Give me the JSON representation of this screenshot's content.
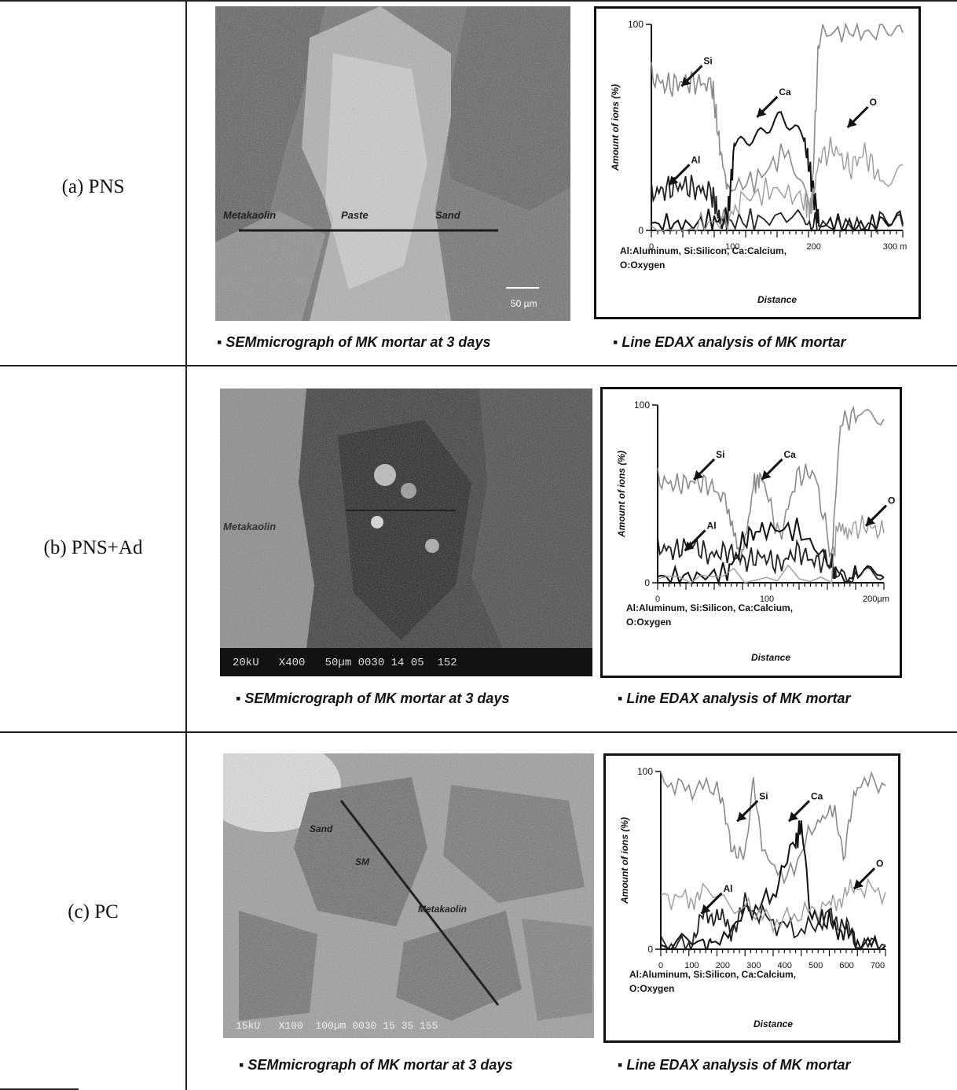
{
  "rows": [
    {
      "label": "(a) PNS",
      "sem": {
        "caption": "SEMmicrograph of MK mortar at 3 days",
        "overlay_labels": [
          "Metakaolin",
          "Paste",
          "Sand"
        ],
        "scalebar_label": "50 µm",
        "info_strip": ""
      },
      "chart": {
        "caption": "Line EDAX analysis of MK mortar",
        "ylabel": "Amount of ions (%)",
        "xlabel": "Distance",
        "legend_lines": [
          "Al:Aluminum, Si:Silicon, Ca:Calcium,",
          "O:Oxygen"
        ],
        "yticks": [
          "100",
          "0"
        ],
        "xticks": [
          "0",
          "100",
          "200",
          "300 m"
        ],
        "annotations": [
          "Si",
          "Ca",
          "Al",
          "O"
        ]
      }
    },
    {
      "label": "(b) PNS+Ad",
      "sem": {
        "caption": "SEMmicrograph of MK mortar at 3 days",
        "overlay_labels": [
          "Metakaolin"
        ],
        "scalebar_label": "",
        "info_strip": "20kU   X400   50µm 0030 14 05  152"
      },
      "chart": {
        "caption": "Line EDAX analysis of MK mortar",
        "ylabel": "Amount of ions (%)",
        "xlabel": "Distance",
        "legend_lines": [
          "Al:Aluminum, Si:Silicon, Ca:Calcium,",
          "O:Oxygen"
        ],
        "yticks": [
          "100",
          "0"
        ],
        "xticks": [
          "0",
          "100",
          "200µm"
        ],
        "annotations": [
          "Si",
          "Ca",
          "Al",
          "O"
        ]
      }
    },
    {
      "label": "(c) PC",
      "sem": {
        "caption": "SEMmicrograph of MK mortar at 3 days",
        "overlay_labels": [
          "Sand",
          "SM",
          "Metakaolin"
        ],
        "scalebar_label": "",
        "info_strip": "15kU   X100  100µm 0030 15 35 155"
      },
      "chart": {
        "caption": "Line EDAX analysis of MK mortar",
        "ylabel": "Amount of ions (%)",
        "xlabel": "Distance",
        "legend_lines": [
          "Al:Aluminum, Si:Silicon, Ca:Calcium,",
          "O:Oxygen"
        ],
        "yticks": [
          "100",
          "0"
        ],
        "xticks": [
          "0",
          "100",
          "200",
          "300",
          "400",
          "500",
          "600",
          "700"
        ],
        "annotations": [
          "Si",
          "Ca",
          "Al",
          "O"
        ]
      }
    }
  ],
  "chart_data": [
    {
      "type": "line",
      "ylabel": "Amount of ions (%)",
      "xlabel": "Distance",
      "ylim": [
        0,
        100
      ],
      "xlim": [
        0,
        330
      ],
      "series": [
        {
          "name": "Si",
          "x": [
            0,
            20,
            40,
            60,
            80,
            90,
            100,
            140,
            180,
            210,
            220,
            260,
            300,
            330
          ],
          "values": [
            75,
            70,
            72,
            72,
            70,
            40,
            20,
            25,
            40,
            10,
            95,
            97,
            95,
            96
          ]
        },
        {
          "name": "Ca",
          "x": [
            0,
            40,
            80,
            100,
            110,
            140,
            170,
            200,
            210,
            220,
            260,
            300,
            330
          ],
          "values": [
            3,
            2,
            4,
            5,
            45,
            50,
            58,
            45,
            25,
            3,
            2,
            2,
            3
          ]
        },
        {
          "name": "Al",
          "x": [
            0,
            20,
            40,
            60,
            80,
            90,
            100,
            140,
            200,
            220,
            260,
            300,
            330
          ],
          "values": [
            18,
            20,
            22,
            20,
            18,
            5,
            4,
            5,
            3,
            2,
            2,
            2,
            2
          ]
        },
        {
          "name": "O",
          "x": [
            0,
            60,
            100,
            120,
            160,
            200,
            210,
            220,
            240,
            260,
            280,
            300,
            330
          ],
          "values": [
            2,
            2,
            5,
            15,
            20,
            15,
            10,
            35,
            40,
            30,
            38,
            25,
            32
          ]
        }
      ]
    },
    {
      "type": "line",
      "ylabel": "Amount of ions (%)",
      "xlabel": "Distance",
      "ylim": [
        0,
        100
      ],
      "xlim": [
        0,
        260
      ],
      "series": [
        {
          "name": "Si",
          "x": [
            0,
            20,
            40,
            60,
            80,
            95,
            110,
            120,
            140,
            160,
            180,
            200,
            210,
            230,
            260
          ],
          "values": [
            58,
            55,
            57,
            55,
            45,
            10,
            55,
            60,
            25,
            60,
            62,
            15,
            90,
            95,
            92
          ]
        },
        {
          "name": "Ca",
          "x": [
            0,
            40,
            80,
            100,
            120,
            160,
            200,
            205,
            230,
            260
          ],
          "values": [
            3,
            3,
            5,
            25,
            30,
            30,
            10,
            3,
            3,
            3
          ]
        },
        {
          "name": "Al",
          "x": [
            0,
            20,
            40,
            60,
            80,
            100,
            120,
            140,
            160,
            180,
            200,
            205,
            230,
            260
          ],
          "values": [
            20,
            18,
            22,
            15,
            18,
            12,
            15,
            10,
            18,
            12,
            12,
            3,
            3,
            3
          ]
        },
        {
          "name": "O",
          "x": [
            0,
            100,
            200,
            205,
            220,
            240,
            260
          ],
          "values": [
            2,
            3,
            3,
            28,
            30,
            32,
            28
          ]
        }
      ]
    },
    {
      "type": "line",
      "ylabel": "Amount of ions (%)",
      "xlabel": "Distance",
      "ylim": [
        0,
        100
      ],
      "xlim": [
        0,
        800
      ],
      "series": [
        {
          "name": "Si",
          "x": [
            0,
            100,
            200,
            250,
            300,
            330,
            360,
            450,
            550,
            620,
            650,
            700,
            800
          ],
          "values": [
            95,
            90,
            92,
            60,
            50,
            95,
            60,
            40,
            70,
            80,
            50,
            95,
            92
          ]
        },
        {
          "name": "Ca",
          "x": [
            0,
            150,
            180,
            300,
            400,
            480,
            500,
            530,
            600,
            650,
            700,
            800
          ],
          "values": [
            2,
            2,
            5,
            20,
            30,
            60,
            70,
            20,
            15,
            10,
            3,
            2
          ]
        },
        {
          "name": "Al",
          "x": [
            0,
            100,
            150,
            200,
            250,
            300,
            400,
            500,
            600,
            650,
            700,
            800
          ],
          "values": [
            2,
            2,
            18,
            20,
            10,
            25,
            15,
            10,
            18,
            15,
            3,
            2
          ]
        },
        {
          "name": "O",
          "x": [
            0,
            100,
            150,
            300,
            400,
            500,
            600,
            650,
            700,
            800
          ],
          "values": [
            30,
            28,
            30,
            25,
            15,
            20,
            25,
            30,
            35,
            32
          ]
        }
      ]
    }
  ]
}
